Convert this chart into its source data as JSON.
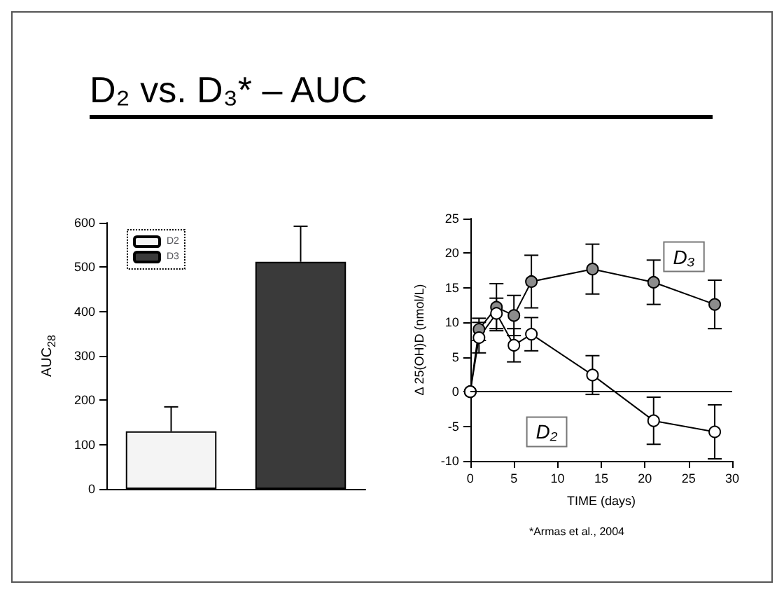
{
  "chart_data": [
    {
      "type": "bar",
      "title": "D₂ vs. D₃* – AUC",
      "ylabel": "AUC$_{28}$",
      "categories": [
        null,
        null
      ],
      "series": [
        {
          "name": "D2",
          "color": "#f4f4f4",
          "values": [
            130,
            null
          ],
          "errors": [
            [
              130,
              185
            ],
            null
          ]
        },
        {
          "name": "D3",
          "color": "#3a3a3a",
          "values": [
            null,
            512
          ],
          "errors": [
            null,
            [
              512,
              592
            ]
          ]
        }
      ],
      "ylim": [
        0,
        600
      ],
      "yticks": [
        0,
        100,
        200,
        300,
        400,
        500,
        600
      ],
      "grid": false,
      "legend": "top left"
    },
    {
      "type": "line",
      "xlabel": "TIME (days)",
      "ylabel": "Δ 25(OH)D (nmol/L)",
      "annotations": [
        "*Armas et al., 2004"
      ],
      "series": [
        {
          "name": "D₃",
          "color": "#8c8c8c",
          "x": [
            0,
            1,
            3,
            5,
            7,
            14,
            21,
            28
          ],
          "values": [
            0,
            9,
            12.2,
            11,
            15.9,
            17.7,
            15.8,
            12.6
          ],
          "errors": [
            null,
            1.6,
            3.4,
            2.9,
            3.8,
            3.6,
            3.2,
            3.5
          ]
        },
        {
          "name": "D₂",
          "color": "#ffffff",
          "x": [
            0,
            1,
            3,
            5,
            7,
            14,
            21,
            28
          ],
          "values": [
            0,
            7.8,
            11.3,
            6.7,
            8.3,
            2.4,
            -4.2,
            -5.8
          ],
          "errors": [
            null,
            2.2,
            2.2,
            2.4,
            2.4,
            2.8,
            3.4,
            3.9
          ]
        }
      ],
      "xlim": [
        0,
        30
      ],
      "xticks": [
        0,
        5,
        10,
        15,
        20,
        25,
        30
      ],
      "ylim": [
        -10,
        25
      ],
      "yticks": [
        -10,
        -5,
        0,
        5,
        10,
        15,
        20,
        25
      ],
      "ref_lines": [
        {
          "axis": "y",
          "value": 0,
          "label": null
        }
      ],
      "grid": false,
      "legend": false,
      "marker": "circle",
      "line_style": "solid"
    }
  ]
}
